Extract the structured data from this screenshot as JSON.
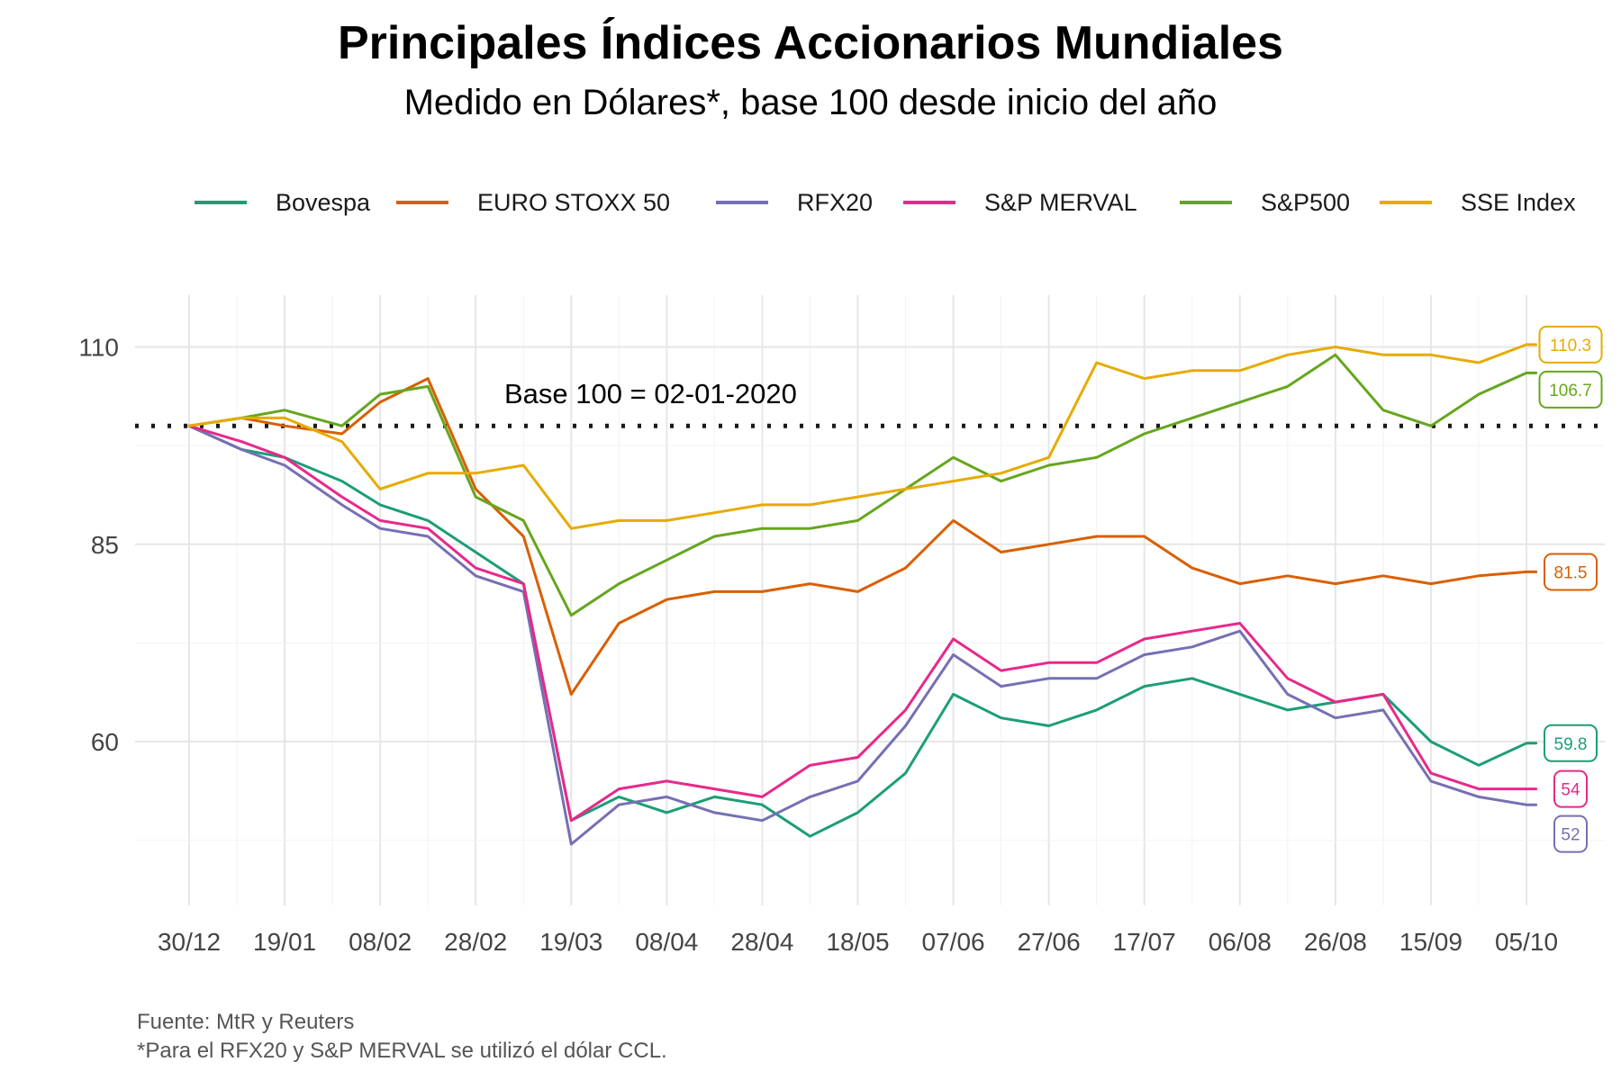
{
  "chart_data": {
    "type": "line",
    "title": "Principales Índices Accionarios Mundiales",
    "subtitle": "Medido en Dólares*, base 100 desde inicio del año",
    "xlabel": "",
    "ylabel": "",
    "x_tick_labels": [
      "30/12",
      "19/01",
      "08/02",
      "28/02",
      "19/03",
      "08/04",
      "28/04",
      "18/05",
      "07/06",
      "27/06",
      "17/07",
      "06/08",
      "26/08",
      "15/09",
      "05/10"
    ],
    "x_dates": [
      "2019-12-30",
      "2020-01-10",
      "2020-01-19",
      "2020-01-31",
      "2020-02-08",
      "2020-02-18",
      "2020-02-28",
      "2020-03-09",
      "2020-03-19",
      "2020-03-29",
      "2020-04-08",
      "2020-04-18",
      "2020-04-28",
      "2020-05-08",
      "2020-05-18",
      "2020-05-28",
      "2020-06-07",
      "2020-06-17",
      "2020-06-27",
      "2020-07-07",
      "2020-07-17",
      "2020-07-27",
      "2020-08-06",
      "2020-08-16",
      "2020-08-26",
      "2020-09-05",
      "2020-09-15",
      "2020-09-25",
      "2020-10-05",
      "2020-10-07"
    ],
    "y_ticks": [
      60,
      85,
      110
    ],
    "ylim": [
      40,
      115
    ],
    "grid": true,
    "legend_position": "top",
    "reference_line": {
      "value": 100,
      "style": "dotted",
      "label": "Base 100 = 02-01-2020"
    },
    "series": [
      {
        "name": "Bovespa",
        "color": "#1b9e77",
        "end_label": "59.8",
        "values": [
          100,
          97,
          96,
          93,
          90,
          88,
          84,
          80,
          50,
          53,
          51,
          53,
          52,
          48,
          51,
          56,
          66,
          63,
          62,
          64,
          67,
          68,
          66,
          64,
          65,
          66,
          60,
          57,
          59.8,
          59.8
        ]
      },
      {
        "name": "EURO STOXX 50",
        "color": "#d95f02",
        "end_label": "81.5",
        "values": [
          100,
          101,
          100,
          99,
          103,
          106,
          92,
          86,
          66,
          75,
          78,
          79,
          79,
          80,
          79,
          82,
          88,
          84,
          85,
          86,
          86,
          82,
          80,
          81,
          80,
          81,
          80,
          81,
          81.5,
          81.5
        ]
      },
      {
        "name": "RFX20",
        "color": "#7570b3",
        "end_label": "52",
        "values": [
          100,
          97,
          95,
          90,
          87,
          86,
          81,
          79,
          47,
          52,
          53,
          51,
          50,
          53,
          55,
          62,
          71,
          67,
          68,
          68,
          71,
          72,
          74,
          66,
          63,
          64,
          55,
          53,
          52,
          52
        ]
      },
      {
        "name": "S&P MERVAL",
        "color": "#e7298a",
        "end_label": "54",
        "values": [
          100,
          98,
          96,
          91,
          88,
          87,
          82,
          80,
          50,
          54,
          55,
          54,
          53,
          57,
          58,
          64,
          73,
          69,
          70,
          70,
          73,
          74,
          75,
          68,
          65,
          66,
          56,
          54,
          54,
          54
        ]
      },
      {
        "name": "S&P500",
        "color": "#66a61e",
        "end_label": "106.7",
        "values": [
          100,
          101,
          102,
          100,
          104,
          105,
          91,
          88,
          76,
          80,
          83,
          86,
          87,
          87,
          88,
          92,
          96,
          93,
          95,
          96,
          99,
          101,
          103,
          105,
          109,
          102,
          100,
          104,
          106.7,
          106.7
        ]
      },
      {
        "name": "SSE Index",
        "color": "#e6ab02",
        "end_label": "110.3",
        "values": [
          100,
          101,
          101,
          98,
          92,
          94,
          94,
          95,
          87,
          88,
          88,
          89,
          90,
          90,
          91,
          92,
          93,
          94,
          96,
          108,
          106,
          107,
          107,
          109,
          110,
          109,
          109,
          108,
          110.3,
          110.3
        ]
      }
    ],
    "caption_lines": [
      "Fuente: MtR y Reuters",
      "*Para el RFX20 y S&P MERVAL se utilizó el dólar CCL."
    ]
  }
}
